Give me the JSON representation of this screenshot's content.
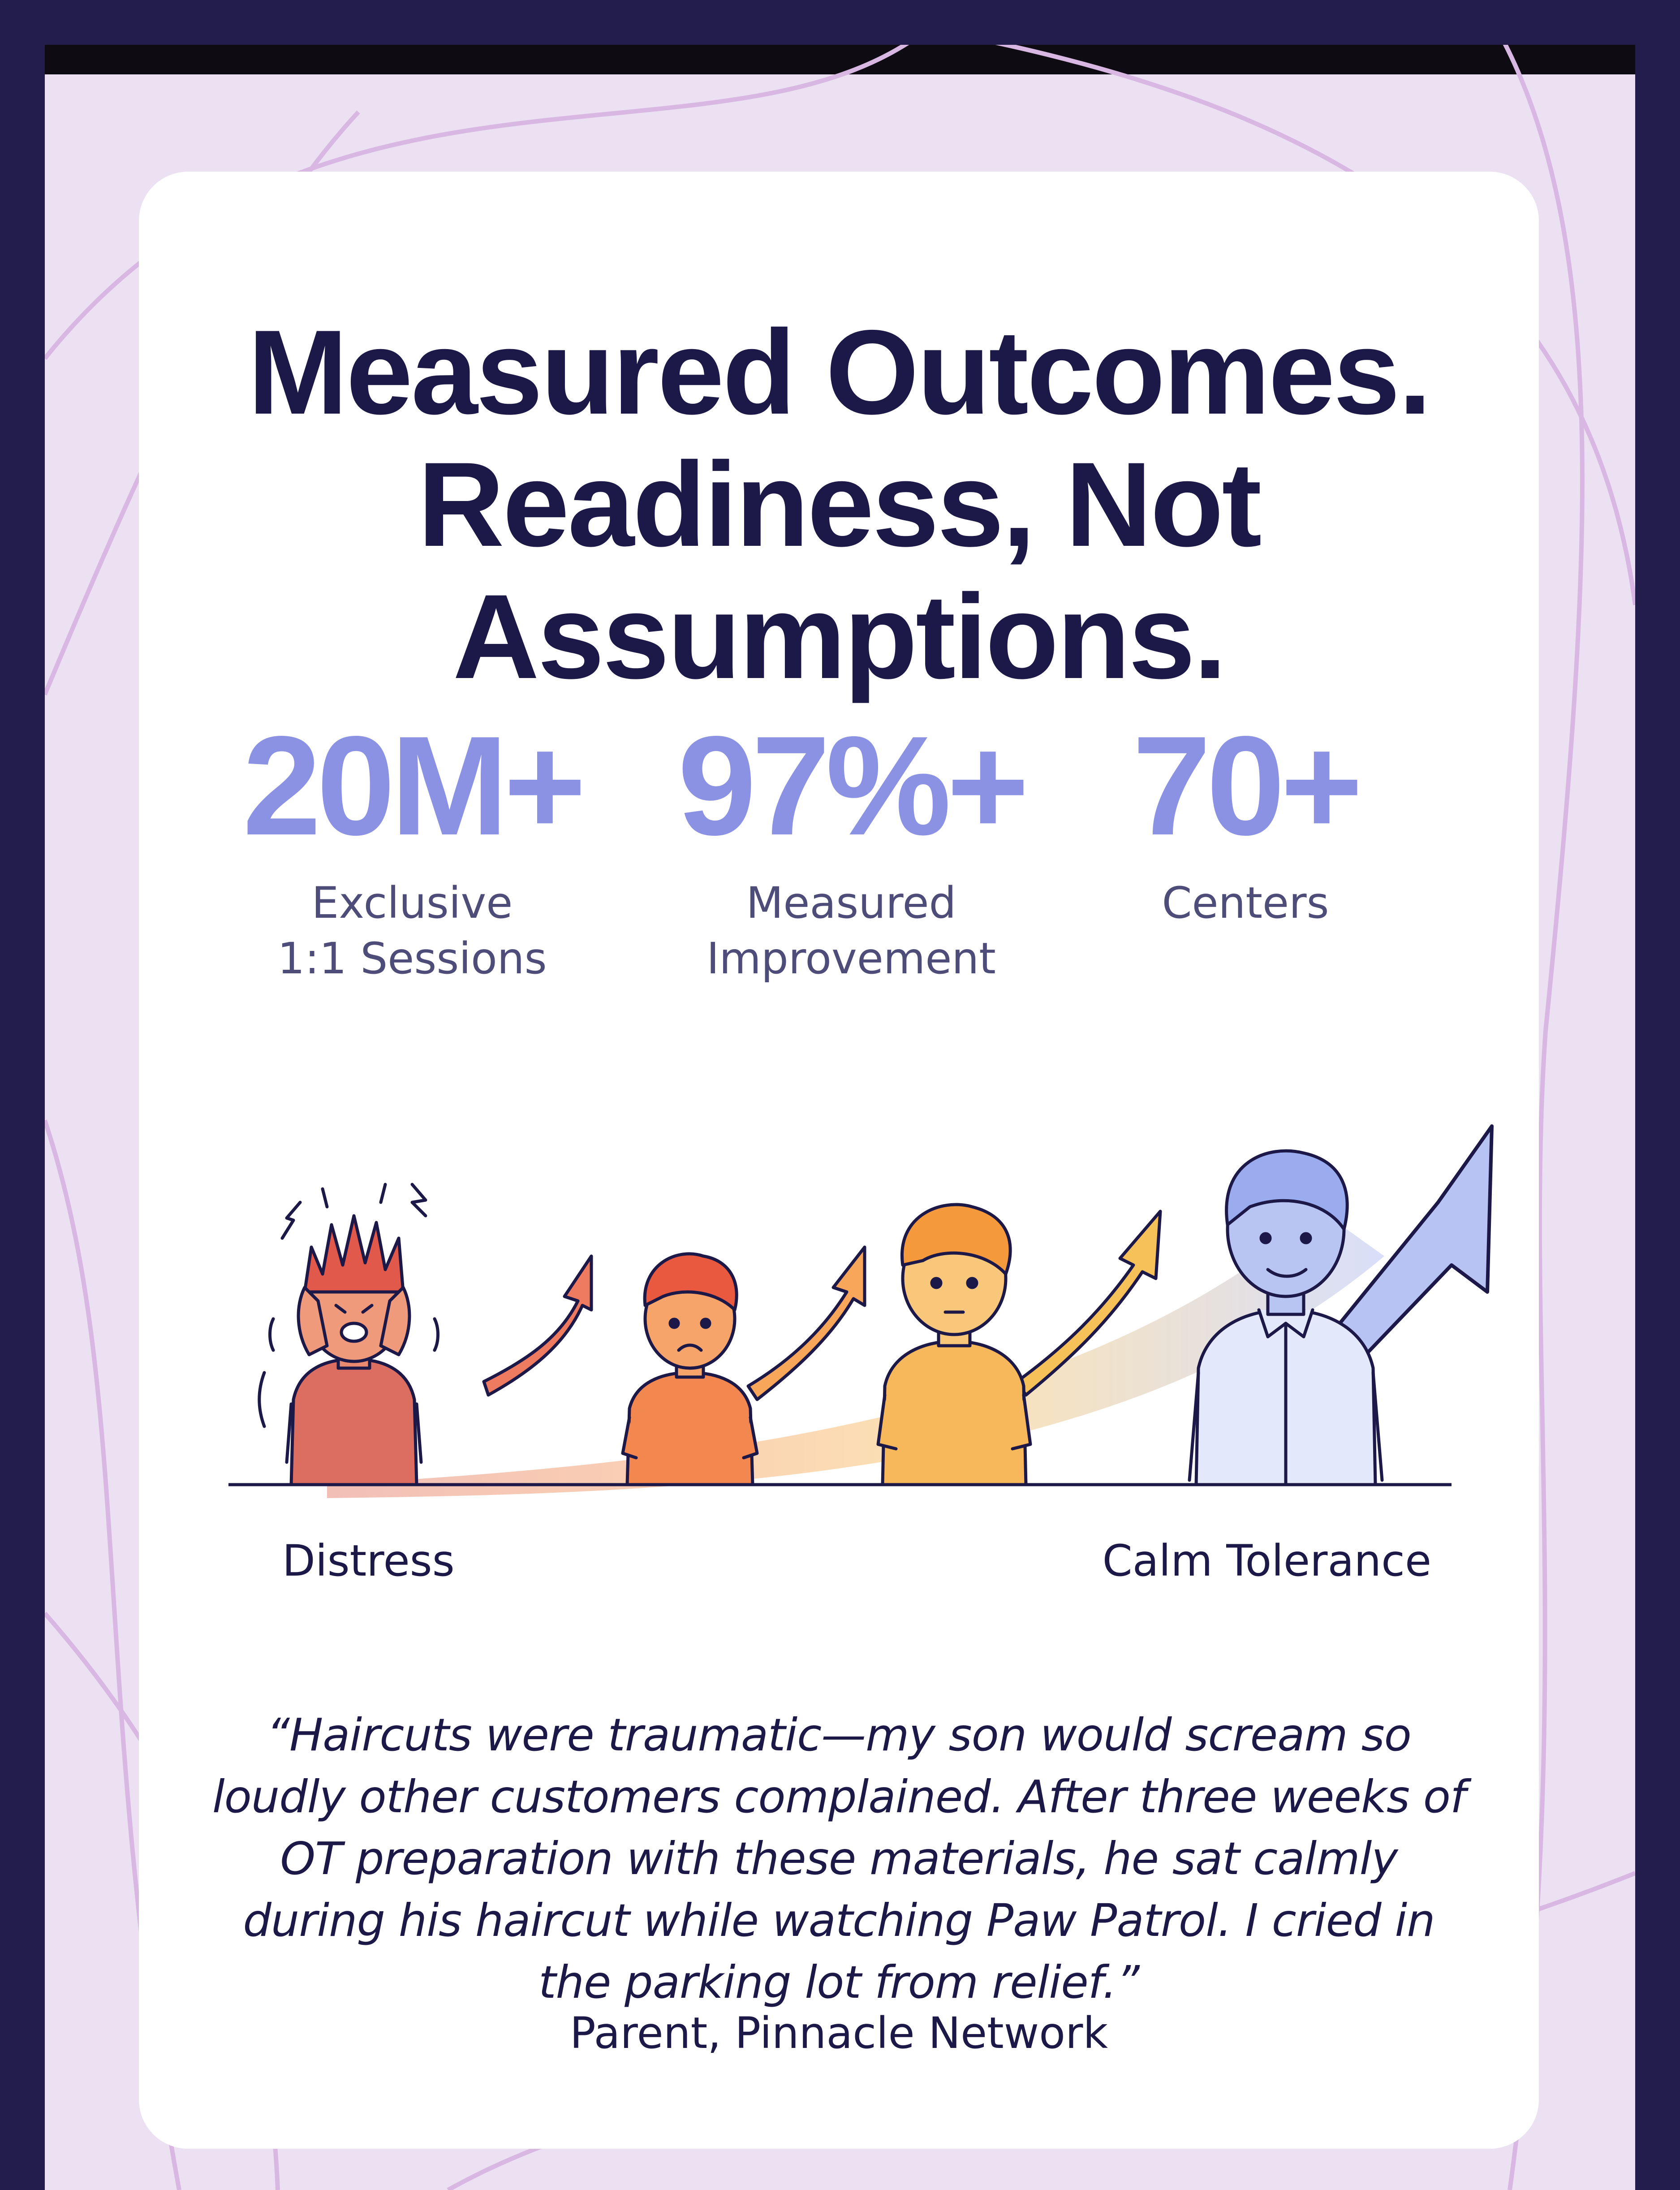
{
  "headline": "Measured Outcomes. Readiness, Not Assumptions.",
  "stats": [
    {
      "value": "20M+",
      "label": "Exclusive 1:1 Sessions"
    },
    {
      "value": "97%+",
      "label": "Measured Improvement"
    },
    {
      "value": "70+",
      "label": "Centers"
    }
  ],
  "progression": {
    "start_label": "Distress",
    "end_label": "Calm Tolerance",
    "figures": [
      "distressed-child-figure",
      "worried-child-figure",
      "neutral-teen-figure",
      "calm-young-man-figure"
    ]
  },
  "testimonial": {
    "quote": "“Haircuts were traumatic—my son would scream so loudly other customers complained. After three weeks of OT preparation with these materials, he sat calmly during his haircut while watching Paw Patrol. I cried in the parking lot from relief.”",
    "attribution": "Parent, Pinnacle Network"
  },
  "colors": {
    "page_border": "#231d4c",
    "background": "#ece0f3",
    "card": "#ffffff",
    "headline": "#1c1847",
    "stat_value": "#8b92e4",
    "distress": "#e2705e",
    "orange": "#f59a56",
    "amber": "#f7c15a",
    "calm": "#aab8f2"
  }
}
